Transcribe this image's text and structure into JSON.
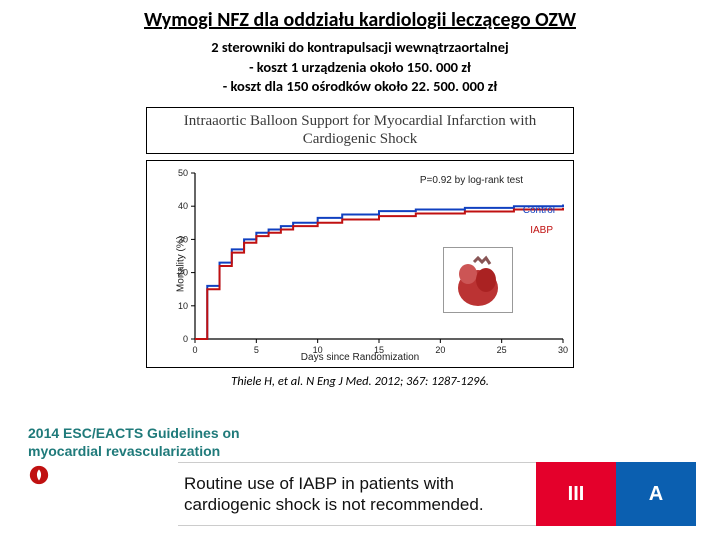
{
  "title": "Wymogi NFZ dla oddziału kardiologii leczącego OZW",
  "subtitle_lines": [
    "2 sterowniki do kontrapulsacji wewnątrzaortalnej",
    "- koszt 1 urządzenia około 150. 000 zł",
    "- koszt dla 150 ośrodków około 22. 500. 000 zł"
  ],
  "study_title": "Intraaortic Balloon Support for Myocardial Infarction with Cardiogenic Shock",
  "chart": {
    "type": "line",
    "xlabel": "Days since Randomization",
    "ylabel": "Mortality (%)",
    "xlim": [
      0,
      30
    ],
    "ylim": [
      0,
      50
    ],
    "xticks": [
      0,
      5,
      10,
      15,
      20,
      25,
      30
    ],
    "yticks": [
      0,
      10,
      20,
      30,
      40,
      50
    ],
    "pvalue_text": "P=0.92 by log-rank test",
    "grid_color": "#dddddd",
    "axis_color": "#000000",
    "background_color": "#ffffff",
    "series": [
      {
        "name": "Control",
        "color": "#1040c0",
        "line_width": 2,
        "x": [
          0,
          1,
          2,
          3,
          4,
          5,
          6,
          7,
          8,
          10,
          12,
          15,
          18,
          22,
          26,
          30
        ],
        "y": [
          0,
          16,
          23,
          27,
          30,
          32,
          33,
          34,
          35,
          36.5,
          37.5,
          38.5,
          39,
          39.5,
          40,
          40.5
        ]
      },
      {
        "name": "IABP",
        "color": "#c01010",
        "line_width": 2,
        "x": [
          0,
          1,
          2,
          3,
          4,
          5,
          6,
          7,
          8,
          10,
          12,
          15,
          18,
          22,
          26,
          30
        ],
        "y": [
          0,
          15,
          22,
          26,
          29,
          31,
          32,
          33,
          34,
          35,
          36,
          37,
          37.8,
          38.4,
          39,
          39.5
        ]
      }
    ],
    "label_fontsize": 10,
    "tick_fontsize": 9
  },
  "heart_inset": {
    "border_color": "#999999",
    "bg": "#ffffff"
  },
  "citation": "Thiele H, et al. N Eng J Med. 2012; 367: 1287-1296.",
  "guidelines_header": "2014 ESC/EACTS Guidelines on myocardial revascularization",
  "recommendation": {
    "text": "Routine use of IABP in patients with cardiogenic shock is not recommended.",
    "class_label": "III",
    "level_label": "A",
    "class_bg": "#e4002b",
    "level_bg": "#0b5fb0",
    "text_color": "#111111",
    "box_text_color": "#ffffff"
  }
}
